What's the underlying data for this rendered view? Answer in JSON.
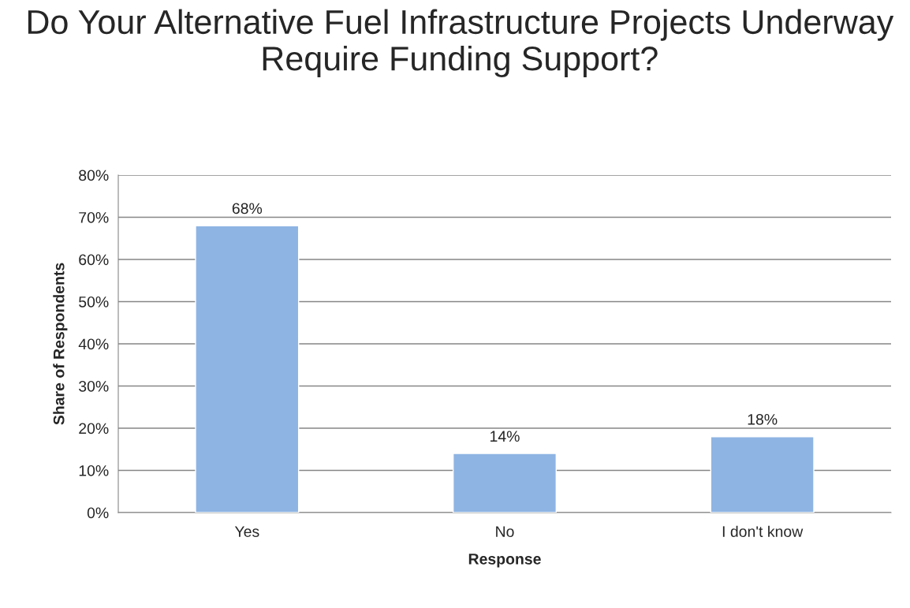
{
  "chart_data": {
    "type": "bar",
    "title": "Do Your Alternative Fuel Infrastructure Projects Underway Require Funding Support?",
    "xlabel": "Response",
    "ylabel": "Share of Respondents",
    "categories": [
      "Yes",
      "No",
      "I don't know"
    ],
    "values": [
      68,
      14,
      18
    ],
    "color": "#8eb4e3",
    "data_labels": true,
    "value_labels": [
      "68%",
      "14%",
      "18%"
    ],
    "ylim": [
      0,
      80
    ],
    "yticks": [
      {
        "value": 0,
        "label": "0%"
      },
      {
        "value": 10,
        "label": "10%"
      },
      {
        "value": 20,
        "label": "20%"
      },
      {
        "value": 30,
        "label": "30%"
      },
      {
        "value": 40,
        "label": "40%"
      },
      {
        "value": 50,
        "label": "50%"
      },
      {
        "value": 60,
        "label": "60%"
      },
      {
        "value": 70,
        "label": "70%"
      },
      {
        "value": 80,
        "label": "80%"
      }
    ],
    "grid": "y"
  }
}
